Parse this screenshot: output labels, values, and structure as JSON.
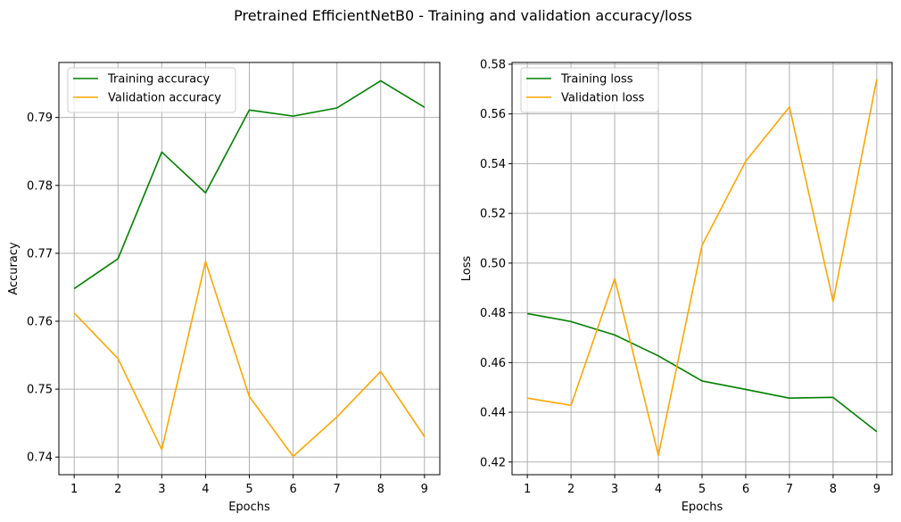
{
  "figure": {
    "title": "Pretrained EfficientNetB0 - Training and validation accuracy/loss"
  },
  "chart_data": [
    {
      "type": "line",
      "title": "",
      "xlabel": "Epochs",
      "ylabel": "Accuracy",
      "x": [
        1,
        2,
        3,
        4,
        5,
        6,
        7,
        8,
        9
      ],
      "xticks": [
        1,
        2,
        3,
        4,
        5,
        6,
        7,
        8,
        9
      ],
      "xlim": [
        0.65,
        9.35
      ],
      "yticks": [
        0.74,
        0.75,
        0.76,
        0.77,
        0.78,
        0.79
      ],
      "ytick_labels": [
        "0.74",
        "0.75",
        "0.76",
        "0.77",
        "0.78",
        "0.79"
      ],
      "ylim": [
        0.7374,
        0.7981
      ],
      "grid": true,
      "legend": "top-left",
      "series": [
        {
          "name": "Training accuracy",
          "color": "#008000",
          "values": [
            0.7648,
            0.7692,
            0.7849,
            0.7789,
            0.7911,
            0.7902,
            0.7914,
            0.7954,
            0.7915
          ]
        },
        {
          "name": "Validation accuracy",
          "color": "#FFA500",
          "values": [
            0.7612,
            0.7545,
            0.7411,
            0.7688,
            0.7489,
            0.7401,
            0.7459,
            0.7526,
            0.743
          ]
        }
      ]
    },
    {
      "type": "line",
      "title": "",
      "xlabel": "Epochs",
      "ylabel": "Loss",
      "x": [
        1,
        2,
        3,
        4,
        5,
        6,
        7,
        8,
        9
      ],
      "xticks": [
        1,
        2,
        3,
        4,
        5,
        6,
        7,
        8,
        9
      ],
      "xlim": [
        0.65,
        9.35
      ],
      "yticks": [
        0.42,
        0.44,
        0.46,
        0.48,
        0.5,
        0.52,
        0.54,
        0.56,
        0.58
      ],
      "ytick_labels": [
        "0.42",
        "0.44",
        "0.46",
        "0.48",
        "0.50",
        "0.52",
        "0.54",
        "0.56",
        "0.58"
      ],
      "ylim": [
        0.4149,
        0.5807
      ],
      "grid": true,
      "legend": "top-left",
      "series": [
        {
          "name": "Training loss",
          "color": "#008000",
          "values": [
            0.4797,
            0.4765,
            0.4711,
            0.4627,
            0.4526,
            0.4492,
            0.4457,
            0.446,
            0.4322
          ]
        },
        {
          "name": "Validation loss",
          "color": "#FFA500",
          "values": [
            0.4457,
            0.4428,
            0.4938,
            0.4227,
            0.5072,
            0.541,
            0.5628,
            0.4846,
            0.574
          ]
        }
      ]
    }
  ]
}
